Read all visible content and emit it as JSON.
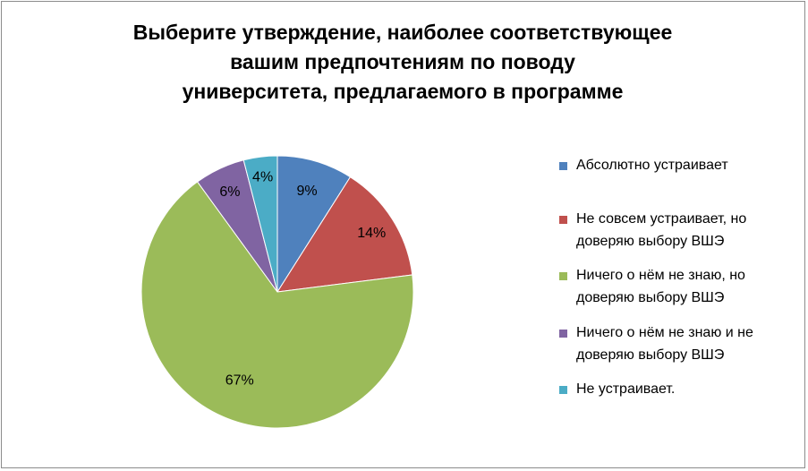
{
  "chart_data": {
    "type": "pie",
    "title_lines": [
      "Выберите утверждение, наиболее соответствующее",
      "вашим предпочтениям по поводу",
      "университета, предлагаемого в программе"
    ],
    "slices": [
      {
        "label": "Абсолютно устраивает",
        "value": 9,
        "display": "9%",
        "color": "#4F81BD"
      },
      {
        "label": "Не совсем устраивает, но доверяю выбору ВШЭ",
        "value": 14,
        "display": "14%",
        "color": "#C0504D"
      },
      {
        "label": "Ничего о нём не знаю, но доверяю выбору ВШЭ",
        "value": 67,
        "display": "67%",
        "color": "#9BBB59"
      },
      {
        "label": "Ничего о нём не знаю и не доверяю выбору ВШЭ",
        "value": 6,
        "display": "6%",
        "color": "#8064A2"
      },
      {
        "label": "Не устраивает.",
        "value": 4,
        "display": "4%",
        "color": "#4BACC6"
      }
    ],
    "legend_position": "right",
    "legend_lines": [
      [
        "Абсолютно устраивает"
      ],
      [
        "Не совсем устраивает, но",
        "доверяю выбору ВШЭ"
      ],
      [
        "Ничего о нём не знаю, но",
        "доверяю выбору ВШЭ"
      ],
      [
        "Ничего о нём не знаю и не",
        "доверяю выбору ВШЭ"
      ],
      [
        "Не устраивает."
      ]
    ]
  }
}
